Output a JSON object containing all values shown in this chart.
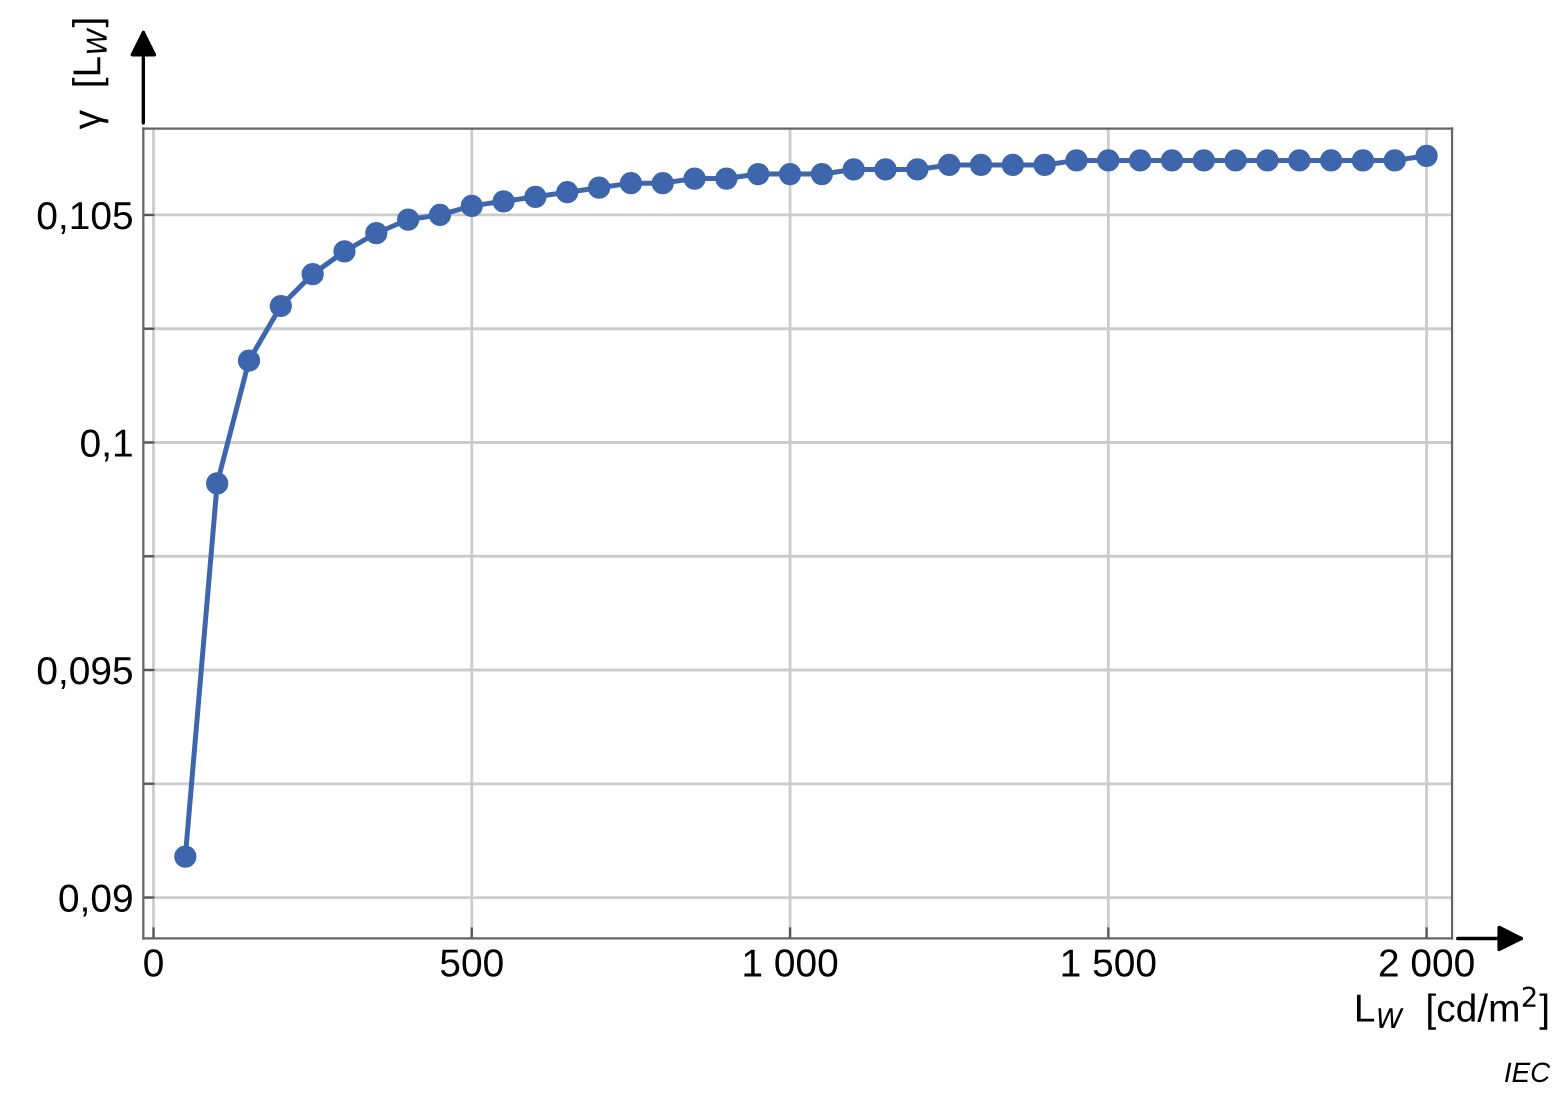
{
  "chart_data": {
    "type": "line",
    "xlabel": "L$_{W}$  [cd/m$^{2}$]",
    "ylabel": "γ  [L$_{W}$]",
    "annotations": [
      "IEC"
    ],
    "x": [
      50,
      100,
      150,
      200,
      250,
      300,
      350,
      400,
      450,
      500,
      550,
      600,
      650,
      700,
      750,
      800,
      850,
      900,
      950,
      1000,
      1050,
      1100,
      1150,
      1200,
      1250,
      1300,
      1350,
      1400,
      1450,
      1500,
      1550,
      1600,
      1650,
      1700,
      1750,
      1800,
      1850,
      1900,
      1950,
      2000
    ],
    "series": [
      {
        "color": "#3d66ad",
        "values": [
          0.0909,
          0.0991,
          0.1018,
          0.103,
          0.1037,
          0.1042,
          0.1046,
          0.1049,
          0.105,
          0.1052,
          0.1053,
          0.1054,
          0.1055,
          0.1056,
          0.1057,
          0.1057,
          0.1058,
          0.1058,
          0.1059,
          0.1059,
          0.1059,
          0.106,
          0.106,
          0.106,
          0.1061,
          0.1061,
          0.1061,
          0.1061,
          0.1062,
          0.1062,
          0.1062,
          0.1062,
          0.1062,
          0.1062,
          0.1062,
          0.1062,
          0.1062,
          0.1062,
          0.1062,
          0.1063
        ]
      }
    ],
    "xlim": [
      -16,
      2040
    ],
    "ylim": [
      0.0891,
      0.1069
    ],
    "xticks": [
      0,
      500,
      {
        "value": 1000,
        "label": "1 000"
      },
      {
        "value": 1500,
        "label": "1 500"
      },
      {
        "value": 2000,
        "label": "2 000"
      }
    ],
    "yticks": [
      {
        "value": 0.09,
        "label": "0,09"
      },
      {
        "value": 0.0925,
        "label": null
      },
      {
        "value": 0.095,
        "label": "0,095"
      },
      {
        "value": 0.0975,
        "label": null
      },
      {
        "value": 0.1,
        "label": "0,1"
      },
      {
        "value": 0.1025,
        "label": null
      },
      {
        "value": 0.105,
        "label": "0,105"
      }
    ],
    "grid": true,
    "marker": "circle",
    "line_style": "solid"
  }
}
